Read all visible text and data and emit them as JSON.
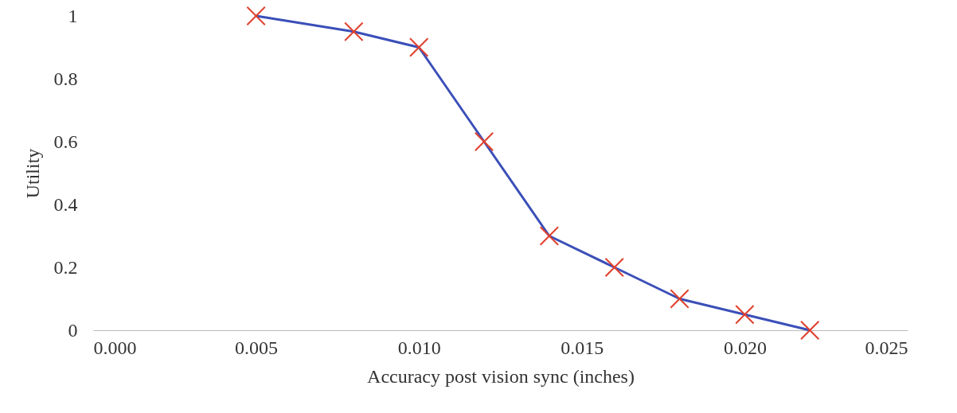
{
  "chart_data": {
    "type": "line",
    "xlabel": "Accuracy post vision sync (inches)",
    "ylabel": "Utility",
    "x": [
      0.005,
      0.008,
      0.01,
      0.012,
      0.014,
      0.016,
      0.018,
      0.02,
      0.022
    ],
    "series": [
      {
        "color": "#3b4fb8",
        "values": [
          1,
          0.95,
          0.9,
          0.6,
          0.3,
          0.2,
          0.1,
          0.05,
          0.0
        ]
      }
    ],
    "marker": "cross",
    "xlim": [
      0,
      0.025
    ],
    "xticks": [
      {
        "value": 0,
        "label": "0.000"
      },
      {
        "value": 0.005,
        "label": "0.005"
      },
      {
        "value": 0.01,
        "label": "0.010"
      },
      {
        "value": 0.015,
        "label": "0.015"
      },
      {
        "value": 0.02,
        "label": "0.020"
      },
      {
        "value": 0.025,
        "label": "0.025"
      }
    ],
    "ylim": [
      0,
      1
    ],
    "yticks": [
      0,
      0.2,
      0.4,
      0.6,
      0.8,
      1
    ],
    "grid": false,
    "line_style": "solid"
  }
}
